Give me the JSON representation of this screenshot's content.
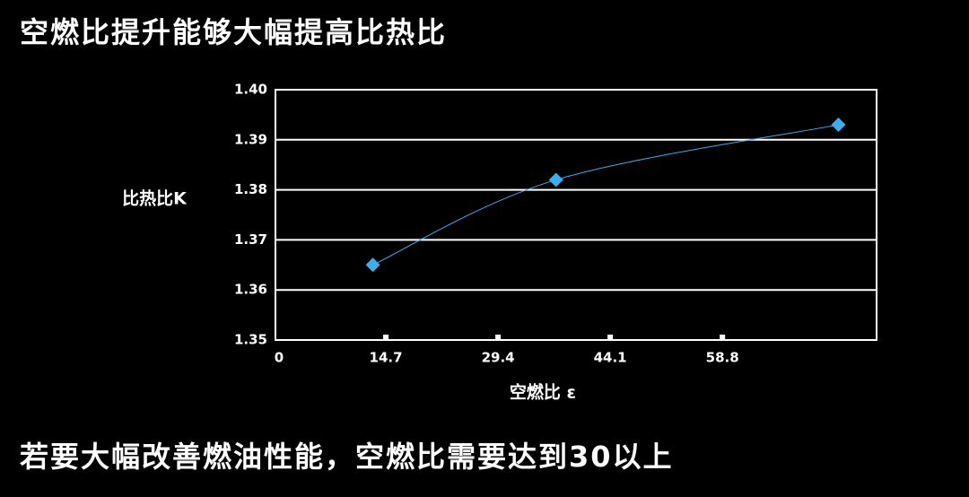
{
  "chart_data": {
    "type": "line",
    "title": "空燃比提升能够大幅提高比热比",
    "subtitle": "若要大幅改善燃油性能，空燃比需要达到30以上",
    "y_label": "比热比K",
    "x_label": "空燃比 ε",
    "x": [
      13,
      37,
      74
    ],
    "series": [
      {
        "name": "比热比",
        "color": "#3daee9",
        "values": [
          1.365,
          1.382,
          1.393
        ]
      }
    ],
    "xlim": [
      0,
      79
    ],
    "xticks": [
      0,
      14.7,
      29.4,
      44.1,
      58.8
    ],
    "ylim": [
      1.35,
      1.4
    ],
    "yticks": [
      1.35,
      1.36,
      1.37,
      1.38,
      1.39,
      {
        "value": 1.4,
        "label": "1.40"
      }
    ],
    "grid": true
  }
}
